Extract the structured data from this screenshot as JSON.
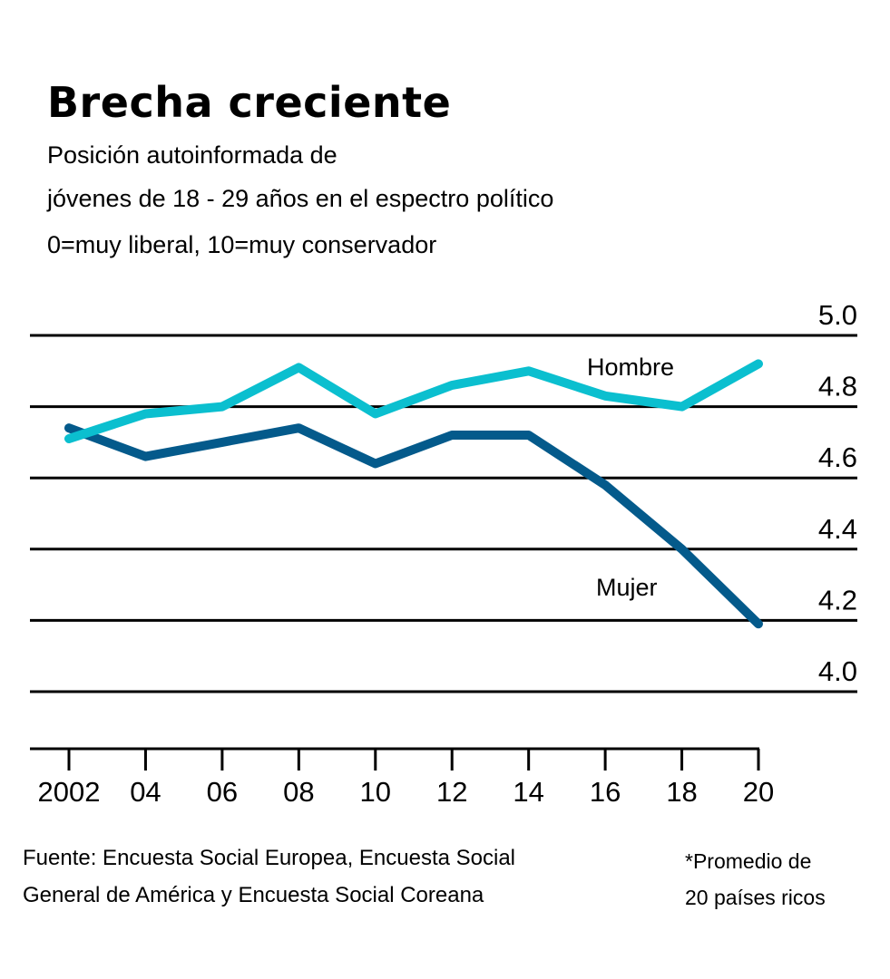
{
  "chart_data": {
    "type": "line",
    "title": "Brecha creciente",
    "subtitle": [
      "Posición autoinformada de",
      "jóvenes de 18 - 29 años en el espectro político",
      "0=muy liberal, 10=muy conservador"
    ],
    "xlabel": "",
    "ylabel": "",
    "x": [
      2002,
      2004,
      2006,
      2008,
      2010,
      2012,
      2014,
      2016,
      2018,
      2020
    ],
    "x_tick_labels": [
      "2002",
      "04",
      "06",
      "08",
      "10",
      "12",
      "14",
      "16",
      "18",
      "20"
    ],
    "ylim": [
      4.0,
      5.0
    ],
    "y_ticks": [
      4.0,
      4.2,
      4.4,
      4.6,
      4.8,
      5.0
    ],
    "y_tick_labels": [
      "4.0",
      "4.2",
      "4.4",
      "4.6",
      "4.8",
      "5.0"
    ],
    "y_axis_side": "right",
    "grid": true,
    "series": [
      {
        "name": "Hombre",
        "color": "#0bbfcf",
        "values": [
          4.71,
          4.78,
          4.8,
          4.91,
          4.78,
          4.86,
          4.9,
          4.83,
          4.8,
          4.92
        ]
      },
      {
        "name": "Mujer",
        "color": "#045a8b",
        "values": [
          4.74,
          4.66,
          4.7,
          4.74,
          4.64,
          4.72,
          4.72,
          4.58,
          4.4,
          4.19
        ]
      }
    ],
    "annotations": [
      "Hombre",
      "Mujer"
    ]
  },
  "footer": {
    "source_line1": "Fuente: Encuesta Social Europea, Encuesta Social",
    "source_line2": "General de América y Encuesta Social Coreana",
    "note_line1": "*Promedio de",
    "note_line2": "20 países ricos"
  }
}
